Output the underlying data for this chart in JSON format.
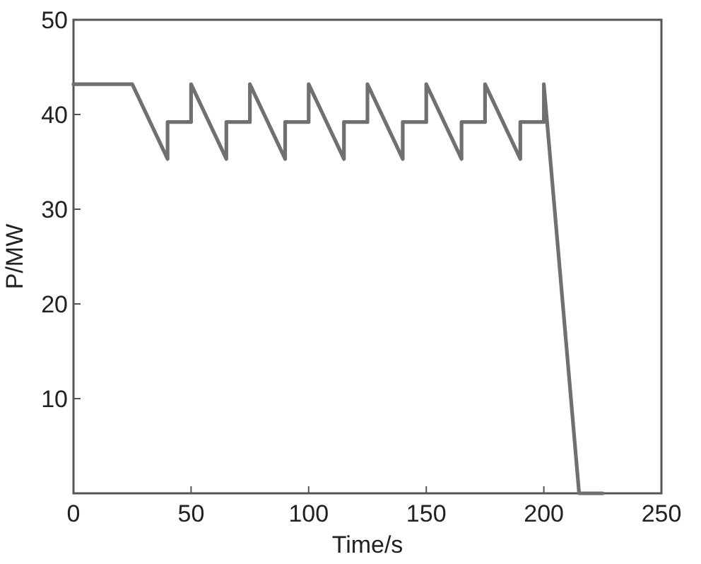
{
  "chart_data": {
    "type": "line",
    "xlabel": "Time/s",
    "ylabel": "P/MW",
    "xlim": [
      0,
      250
    ],
    "ylim": [
      0,
      50
    ],
    "xticks": [
      0,
      50,
      100,
      150,
      200,
      250
    ],
    "yticks": [
      10,
      20,
      30,
      40,
      50
    ],
    "grid": false,
    "marker": "none",
    "line_style": "solid",
    "series": [
      {
        "color": "#707070",
        "x": [
          0,
          25,
          40,
          40,
          50,
          50,
          65,
          65,
          75,
          75,
          90,
          90,
          100,
          100,
          115,
          115,
          125,
          125,
          140,
          140,
          150,
          150,
          165,
          165,
          175,
          175,
          190,
          190,
          200,
          200,
          215,
          225
        ],
        "values": [
          43.2,
          43.2,
          35.3,
          39.2,
          39.2,
          43.2,
          35.3,
          39.2,
          39.2,
          43.2,
          35.3,
          39.2,
          39.2,
          43.2,
          35.3,
          39.2,
          39.2,
          43.2,
          35.3,
          39.2,
          39.2,
          43.2,
          35.3,
          39.2,
          39.2,
          43.2,
          35.3,
          39.2,
          39.2,
          43.2,
          0,
          0
        ]
      }
    ]
  }
}
